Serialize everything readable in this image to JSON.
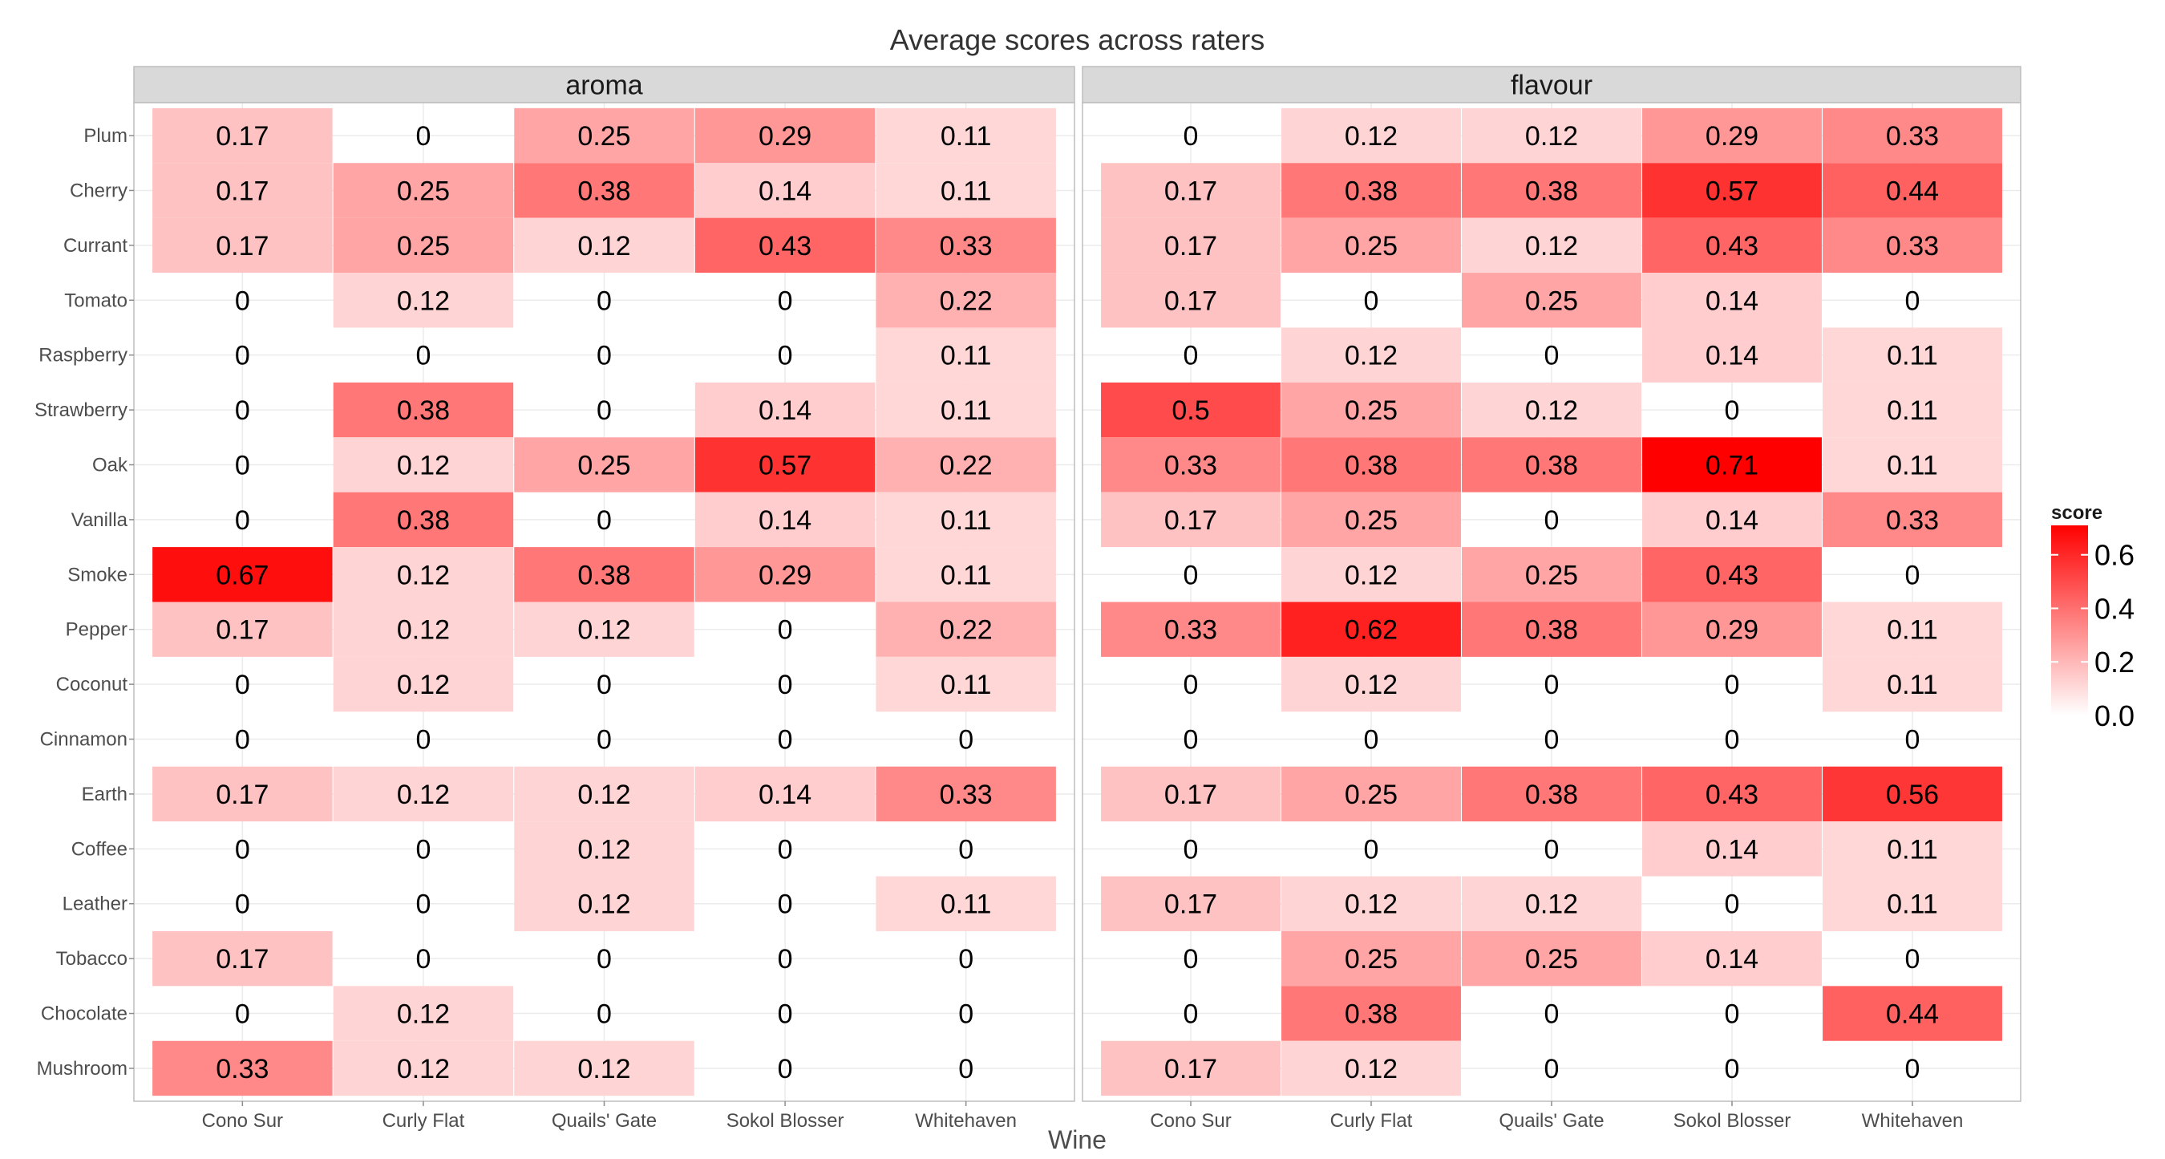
{
  "chart_data": {
    "type": "heatmap",
    "title": "Average scores across raters",
    "xlabel": "Wine",
    "ylabel": "",
    "x": [
      "Cono Sur",
      "Curly Flat",
      "Quails' Gate",
      "Sokol Blosser",
      "Whitehaven"
    ],
    "y": [
      "Plum",
      "Cherry",
      "Currant",
      "Tomato",
      "Raspberry",
      "Strawberry",
      "Oak",
      "Vanilla",
      "Smoke",
      "Pepper",
      "Coconut",
      "Cinnamon",
      "Earth",
      "Coffee",
      "Leather",
      "Tobacco",
      "Chocolate",
      "Mushroom"
    ],
    "panels": [
      {
        "name": "aroma",
        "values": [
          [
            "0.17",
            "0",
            "0.25",
            "0.29",
            "0.11"
          ],
          [
            "0.17",
            "0.25",
            "0.38",
            "0.14",
            "0.11"
          ],
          [
            "0.17",
            "0.25",
            "0.12",
            "0.43",
            "0.33"
          ],
          [
            "0",
            "0.12",
            "0",
            "0",
            "0.22"
          ],
          [
            "0",
            "0",
            "0",
            "0",
            "0.11"
          ],
          [
            "0",
            "0.38",
            "0",
            "0.14",
            "0.11"
          ],
          [
            "0",
            "0.12",
            "0.25",
            "0.57",
            "0.22"
          ],
          [
            "0",
            "0.38",
            "0",
            "0.14",
            "0.11"
          ],
          [
            "0.67",
            "0.12",
            "0.38",
            "0.29",
            "0.11"
          ],
          [
            "0.17",
            "0.12",
            "0.12",
            "0",
            "0.22"
          ],
          [
            "0",
            "0.12",
            "0",
            "0",
            "0.11"
          ],
          [
            "0",
            "0",
            "0",
            "0",
            "0"
          ],
          [
            "0.17",
            "0.12",
            "0.12",
            "0.14",
            "0.33"
          ],
          [
            "0",
            "0",
            "0.12",
            "0",
            "0"
          ],
          [
            "0",
            "0",
            "0.12",
            "0",
            "0.11"
          ],
          [
            "0.17",
            "0",
            "0",
            "0",
            "0"
          ],
          [
            "0",
            "0.12",
            "0",
            "0",
            "0"
          ],
          [
            "0.33",
            "0.12",
            "0.12",
            "0",
            "0"
          ]
        ]
      },
      {
        "name": "flavour",
        "values": [
          [
            "0",
            "0.12",
            "0.12",
            "0.29",
            "0.33"
          ],
          [
            "0.17",
            "0.38",
            "0.38",
            "0.57",
            "0.44"
          ],
          [
            "0.17",
            "0.25",
            "0.12",
            "0.43",
            "0.33"
          ],
          [
            "0.17",
            "0",
            "0.25",
            "0.14",
            "0"
          ],
          [
            "0",
            "0.12",
            "0",
            "0.14",
            "0.11"
          ],
          [
            "0.5",
            "0.25",
            "0.12",
            "0",
            "0.11"
          ],
          [
            "0.33",
            "0.38",
            "0.38",
            "0.71",
            "0.11"
          ],
          [
            "0.17",
            "0.25",
            "0",
            "0.14",
            "0.33"
          ],
          [
            "0",
            "0.12",
            "0.25",
            "0.43",
            "0"
          ],
          [
            "0.33",
            "0.62",
            "0.38",
            "0.29",
            "0.11"
          ],
          [
            "0",
            "0.12",
            "0",
            "0",
            "0.11"
          ],
          [
            "0",
            "0",
            "0",
            "0",
            "0"
          ],
          [
            "0.17",
            "0.25",
            "0.38",
            "0.43",
            "0.56"
          ],
          [
            "0",
            "0",
            "0",
            "0.14",
            "0.11"
          ],
          [
            "0.17",
            "0.12",
            "0.12",
            "0",
            "0.11"
          ],
          [
            "0",
            "0.25",
            "0.25",
            "0.14",
            "0"
          ],
          [
            "0",
            "0.38",
            "0",
            "0",
            "0.44"
          ],
          [
            "0.17",
            "0.12",
            "0",
            "0",
            "0"
          ]
        ]
      }
    ],
    "legend": {
      "title": "score",
      "ticks": [
        "0.0",
        "0.2",
        "0.4",
        "0.6"
      ],
      "position": "right"
    },
    "value_range": [
      0,
      0.71
    ],
    "colors": {
      "low": "#ffffff",
      "high": "#ff0000",
      "strip": "#d9d9d9",
      "panel_border": "#bdbdbd",
      "grid": "#ebebeb",
      "text": "#000000",
      "axis_text": "#4d4d4d"
    },
    "grid": true
  }
}
